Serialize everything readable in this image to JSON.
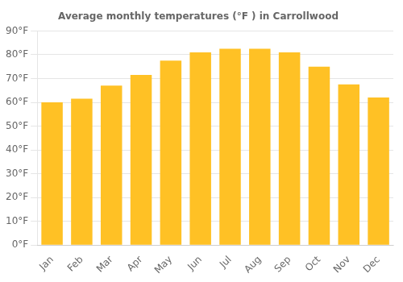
{
  "chart_data": {
    "type": "bar",
    "title": "Average monthly temperatures (°F ) in Carrollwood",
    "categories": [
      "Jan",
      "Feb",
      "Mar",
      "Apr",
      "May",
      "Jun",
      "Jul",
      "Aug",
      "Sep",
      "Oct",
      "Nov",
      "Dec"
    ],
    "values": [
      60,
      61.5,
      67,
      71.5,
      77.5,
      81,
      82.5,
      82.5,
      81,
      75,
      67.5,
      62
    ],
    "color": "#FFC125",
    "ylim": [
      0,
      90
    ],
    "yticks": [
      {
        "value": 0,
        "label": "0°F"
      },
      {
        "value": 10,
        "label": "10°F"
      },
      {
        "value": 20,
        "label": "20°F"
      },
      {
        "value": 30,
        "label": "30°F"
      },
      {
        "value": 40,
        "label": "40°F"
      },
      {
        "value": 50,
        "label": "50°F"
      },
      {
        "value": 60,
        "label": "60°F"
      },
      {
        "value": 70,
        "label": "70°F"
      },
      {
        "value": 80,
        "label": "80°F"
      },
      {
        "value": 90,
        "label": "90°F"
      }
    ],
    "grid": true
  }
}
